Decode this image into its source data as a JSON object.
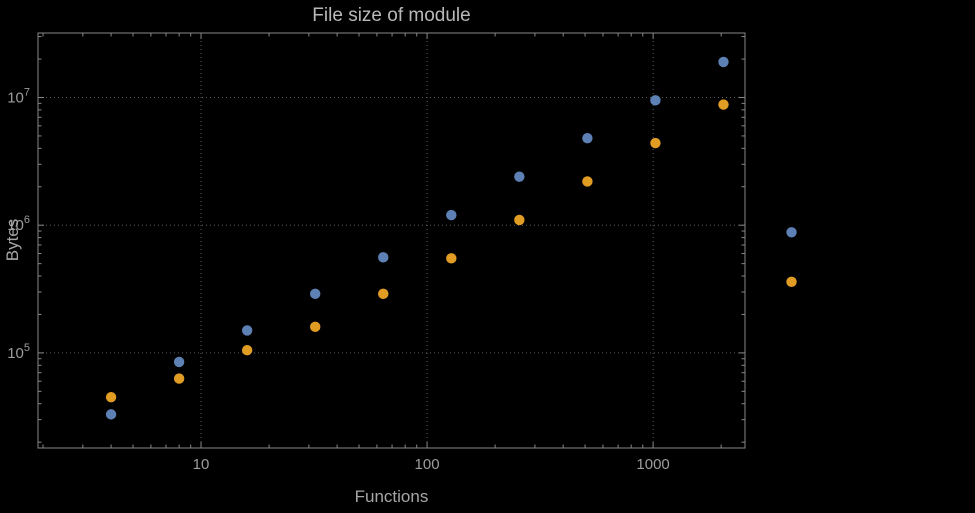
{
  "title": "File size of module",
  "colors": {
    "background": "#000000",
    "frame": "#878787",
    "grid": "#5e5e5e",
    "tick_text": "#9d9d9d",
    "title_text": "#b9b9b9",
    "series_blue": "#5e81b5",
    "series_orange": "#e19c24"
  },
  "chart_data": {
    "type": "scatter",
    "title": "File size of module",
    "xlabel": "Functions",
    "ylabel": "Bytes",
    "x_scale": "log",
    "y_scale": "log",
    "xlim": [
      1.9,
      2550
    ],
    "ylim": [
      18000,
      32000000
    ],
    "grid": "dotted gridlines at decade ticks",
    "legend": "none",
    "x_ticks": [
      {
        "value": 10,
        "label": "10"
      },
      {
        "value": 100,
        "label": "100"
      },
      {
        "value": 1000,
        "label": "1000"
      }
    ],
    "y_ticks": [
      {
        "value": 100000,
        "base": "10",
        "exponent": "5"
      },
      {
        "value": 1000000,
        "base": "10",
        "exponent": "6"
      },
      {
        "value": 10000000,
        "base": "10",
        "exponent": "7"
      }
    ],
    "series": [
      {
        "name": "blue-series",
        "color": "#5e81b5",
        "points": [
          [
            4,
            33000
          ],
          [
            8,
            85000
          ],
          [
            16,
            150000
          ],
          [
            32,
            290000
          ],
          [
            64,
            560000
          ],
          [
            128,
            1200000
          ],
          [
            256,
            2400000
          ],
          [
            512,
            4800000
          ],
          [
            1024,
            9500000
          ],
          [
            2048,
            19000000
          ],
          [
            4096,
            880000
          ]
        ]
      },
      {
        "name": "orange-series",
        "color": "#e19c24",
        "points": [
          [
            4,
            45000
          ],
          [
            8,
            63000
          ],
          [
            16,
            105000
          ],
          [
            32,
            160000
          ],
          [
            64,
            290000
          ],
          [
            128,
            550000
          ],
          [
            256,
            1100000
          ],
          [
            512,
            2200000
          ],
          [
            1024,
            4400000
          ],
          [
            2048,
            8800000
          ],
          [
            4096,
            360000
          ]
        ]
      }
    ]
  }
}
